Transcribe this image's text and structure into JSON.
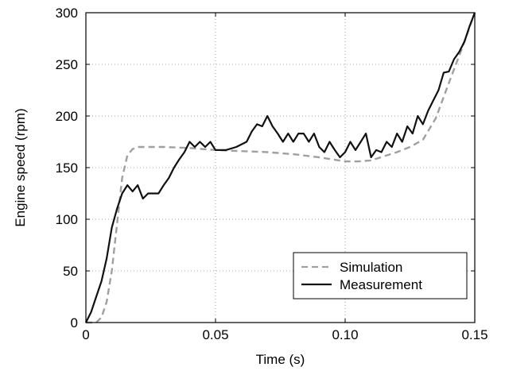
{
  "chart_data": {
    "type": "line",
    "xlabel": "Time (s)",
    "ylabel": "Engine speed (rpm)",
    "xlim": [
      0,
      0.15
    ],
    "ylim": [
      0,
      300
    ],
    "x_ticks": [
      0,
      0.05,
      0.1,
      0.15
    ],
    "x_tick_labels": [
      "0",
      "0.05",
      "0.10",
      "0.15"
    ],
    "y_ticks": [
      0,
      50,
      100,
      150,
      200,
      250,
      300
    ],
    "y_tick_labels": [
      "0",
      "50",
      "100",
      "150",
      "200",
      "250",
      "300"
    ],
    "grid": true,
    "legend_position": "bottom-right",
    "series": [
      {
        "name": "Simulation",
        "style": "dashed",
        "color": "#a0a0a0",
        "x": [
          0,
          0.004,
          0.006,
          0.008,
          0.01,
          0.012,
          0.014,
          0.016,
          0.018,
          0.02,
          0.025,
          0.03,
          0.04,
          0.05,
          0.06,
          0.07,
          0.08,
          0.09,
          0.1,
          0.105,
          0.11,
          0.115,
          0.12,
          0.125,
          0.13,
          0.135,
          0.14,
          0.145,
          0.15
        ],
        "y": [
          0,
          0,
          5,
          20,
          50,
          95,
          140,
          162,
          168,
          170,
          170,
          170,
          169,
          167,
          166,
          165,
          163,
          160,
          156,
          156,
          157,
          161,
          165,
          170,
          177,
          198,
          232,
          265,
          300
        ]
      },
      {
        "name": "Measurement",
        "style": "solid",
        "color": "#111111",
        "x": [
          0,
          0.002,
          0.004,
          0.006,
          0.008,
          0.01,
          0.012,
          0.014,
          0.016,
          0.018,
          0.02,
          0.022,
          0.024,
          0.026,
          0.028,
          0.03,
          0.032,
          0.034,
          0.036,
          0.038,
          0.04,
          0.042,
          0.044,
          0.046,
          0.048,
          0.05,
          0.054,
          0.058,
          0.062,
          0.064,
          0.066,
          0.068,
          0.07,
          0.072,
          0.074,
          0.076,
          0.078,
          0.08,
          0.082,
          0.084,
          0.086,
          0.088,
          0.09,
          0.092,
          0.094,
          0.096,
          0.098,
          0.1,
          0.102,
          0.104,
          0.106,
          0.108,
          0.11,
          0.112,
          0.114,
          0.116,
          0.118,
          0.12,
          0.122,
          0.124,
          0.126,
          0.128,
          0.13,
          0.132,
          0.134,
          0.136,
          0.138,
          0.14,
          0.142,
          0.144,
          0.146,
          0.148,
          0.15
        ],
        "y": [
          0,
          10,
          25,
          40,
          62,
          92,
          110,
          125,
          133,
          127,
          133,
          120,
          125,
          125,
          125,
          133,
          140,
          150,
          158,
          165,
          175,
          170,
          175,
          170,
          175,
          167,
          167,
          170,
          175,
          185,
          192,
          190,
          200,
          190,
          183,
          175,
          183,
          175,
          183,
          183,
          175,
          183,
          170,
          165,
          175,
          167,
          160,
          165,
          175,
          167,
          175,
          183,
          160,
          167,
          165,
          175,
          170,
          183,
          175,
          190,
          183,
          200,
          192,
          205,
          215,
          225,
          242,
          243,
          255,
          262,
          272,
          287,
          300
        ]
      }
    ]
  }
}
